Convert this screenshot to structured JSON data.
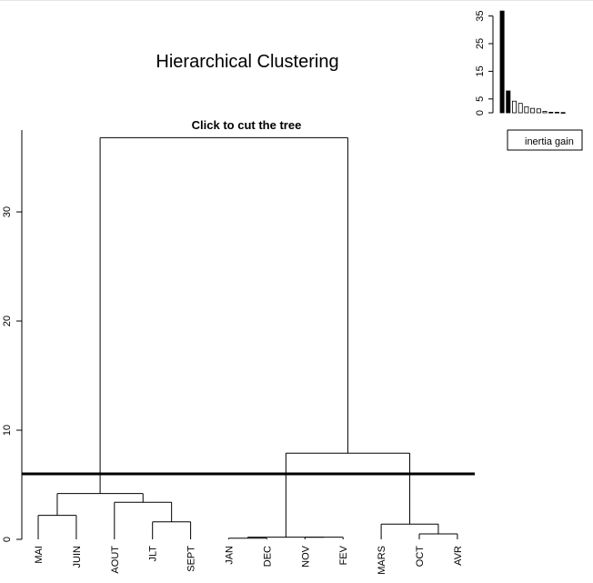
{
  "page": {
    "title": "Hierarchical Clustering",
    "subtitle": "Click to cut the tree"
  },
  "colors": {
    "line": "#000000",
    "background": "#ffffff",
    "bar_main": "#000000",
    "bar_rest": "#ffffff"
  },
  "chart_data": [
    {
      "type": "dendrogram",
      "title": "Hierarchical Clustering",
      "subtitle": "Click to cut the tree",
      "ylim": [
        0,
        37.5
      ],
      "yticks": [
        0,
        10,
        20,
        30
      ],
      "leaves": [
        "MAI",
        "JUIN",
        "AOUT",
        "JLT",
        "SEPT",
        "JAN",
        "DEC",
        "NOV",
        "FEV",
        "MARS",
        "OCT",
        "AVR"
      ],
      "merges": [
        {
          "a": "L:JAN",
          "b": "L:DEC",
          "height": 0.1
        },
        {
          "a": "L:NOV",
          "b": "L:FEV",
          "height": 0.2
        },
        {
          "a": "L:OCT",
          "b": "L:AVR",
          "height": 0.5
        },
        {
          "a": "L:MARS",
          "b": "M:2",
          "height": 1.4
        },
        {
          "a": "L:JLT",
          "b": "L:SEPT",
          "height": 1.6
        },
        {
          "a": "L:MAI",
          "b": "L:JUIN",
          "height": 2.2
        },
        {
          "a": "L:AOUT",
          "b": "M:4",
          "height": 3.4
        },
        {
          "a": "M:5",
          "b": "M:6",
          "height": 4.2
        },
        {
          "a": "M:0",
          "b": "M:1",
          "height": 0.2
        },
        {
          "a": "M:8",
          "b": "M:3",
          "height": 7.9
        },
        {
          "a": "M:7",
          "b": "M:9",
          "height": 36.8
        }
      ],
      "cut_height": 6.0
    },
    {
      "type": "bar",
      "title": "",
      "ylim": [
        0,
        37.5
      ],
      "yticks": [
        0,
        5,
        15,
        25,
        35
      ],
      "values": [
        36.8,
        7.9,
        4.2,
        3.4,
        2.2,
        1.6,
        1.4,
        0.5,
        0.2,
        0.2,
        0.1
      ],
      "highlight_count": 2,
      "legend": [
        "inertia gain"
      ]
    }
  ]
}
